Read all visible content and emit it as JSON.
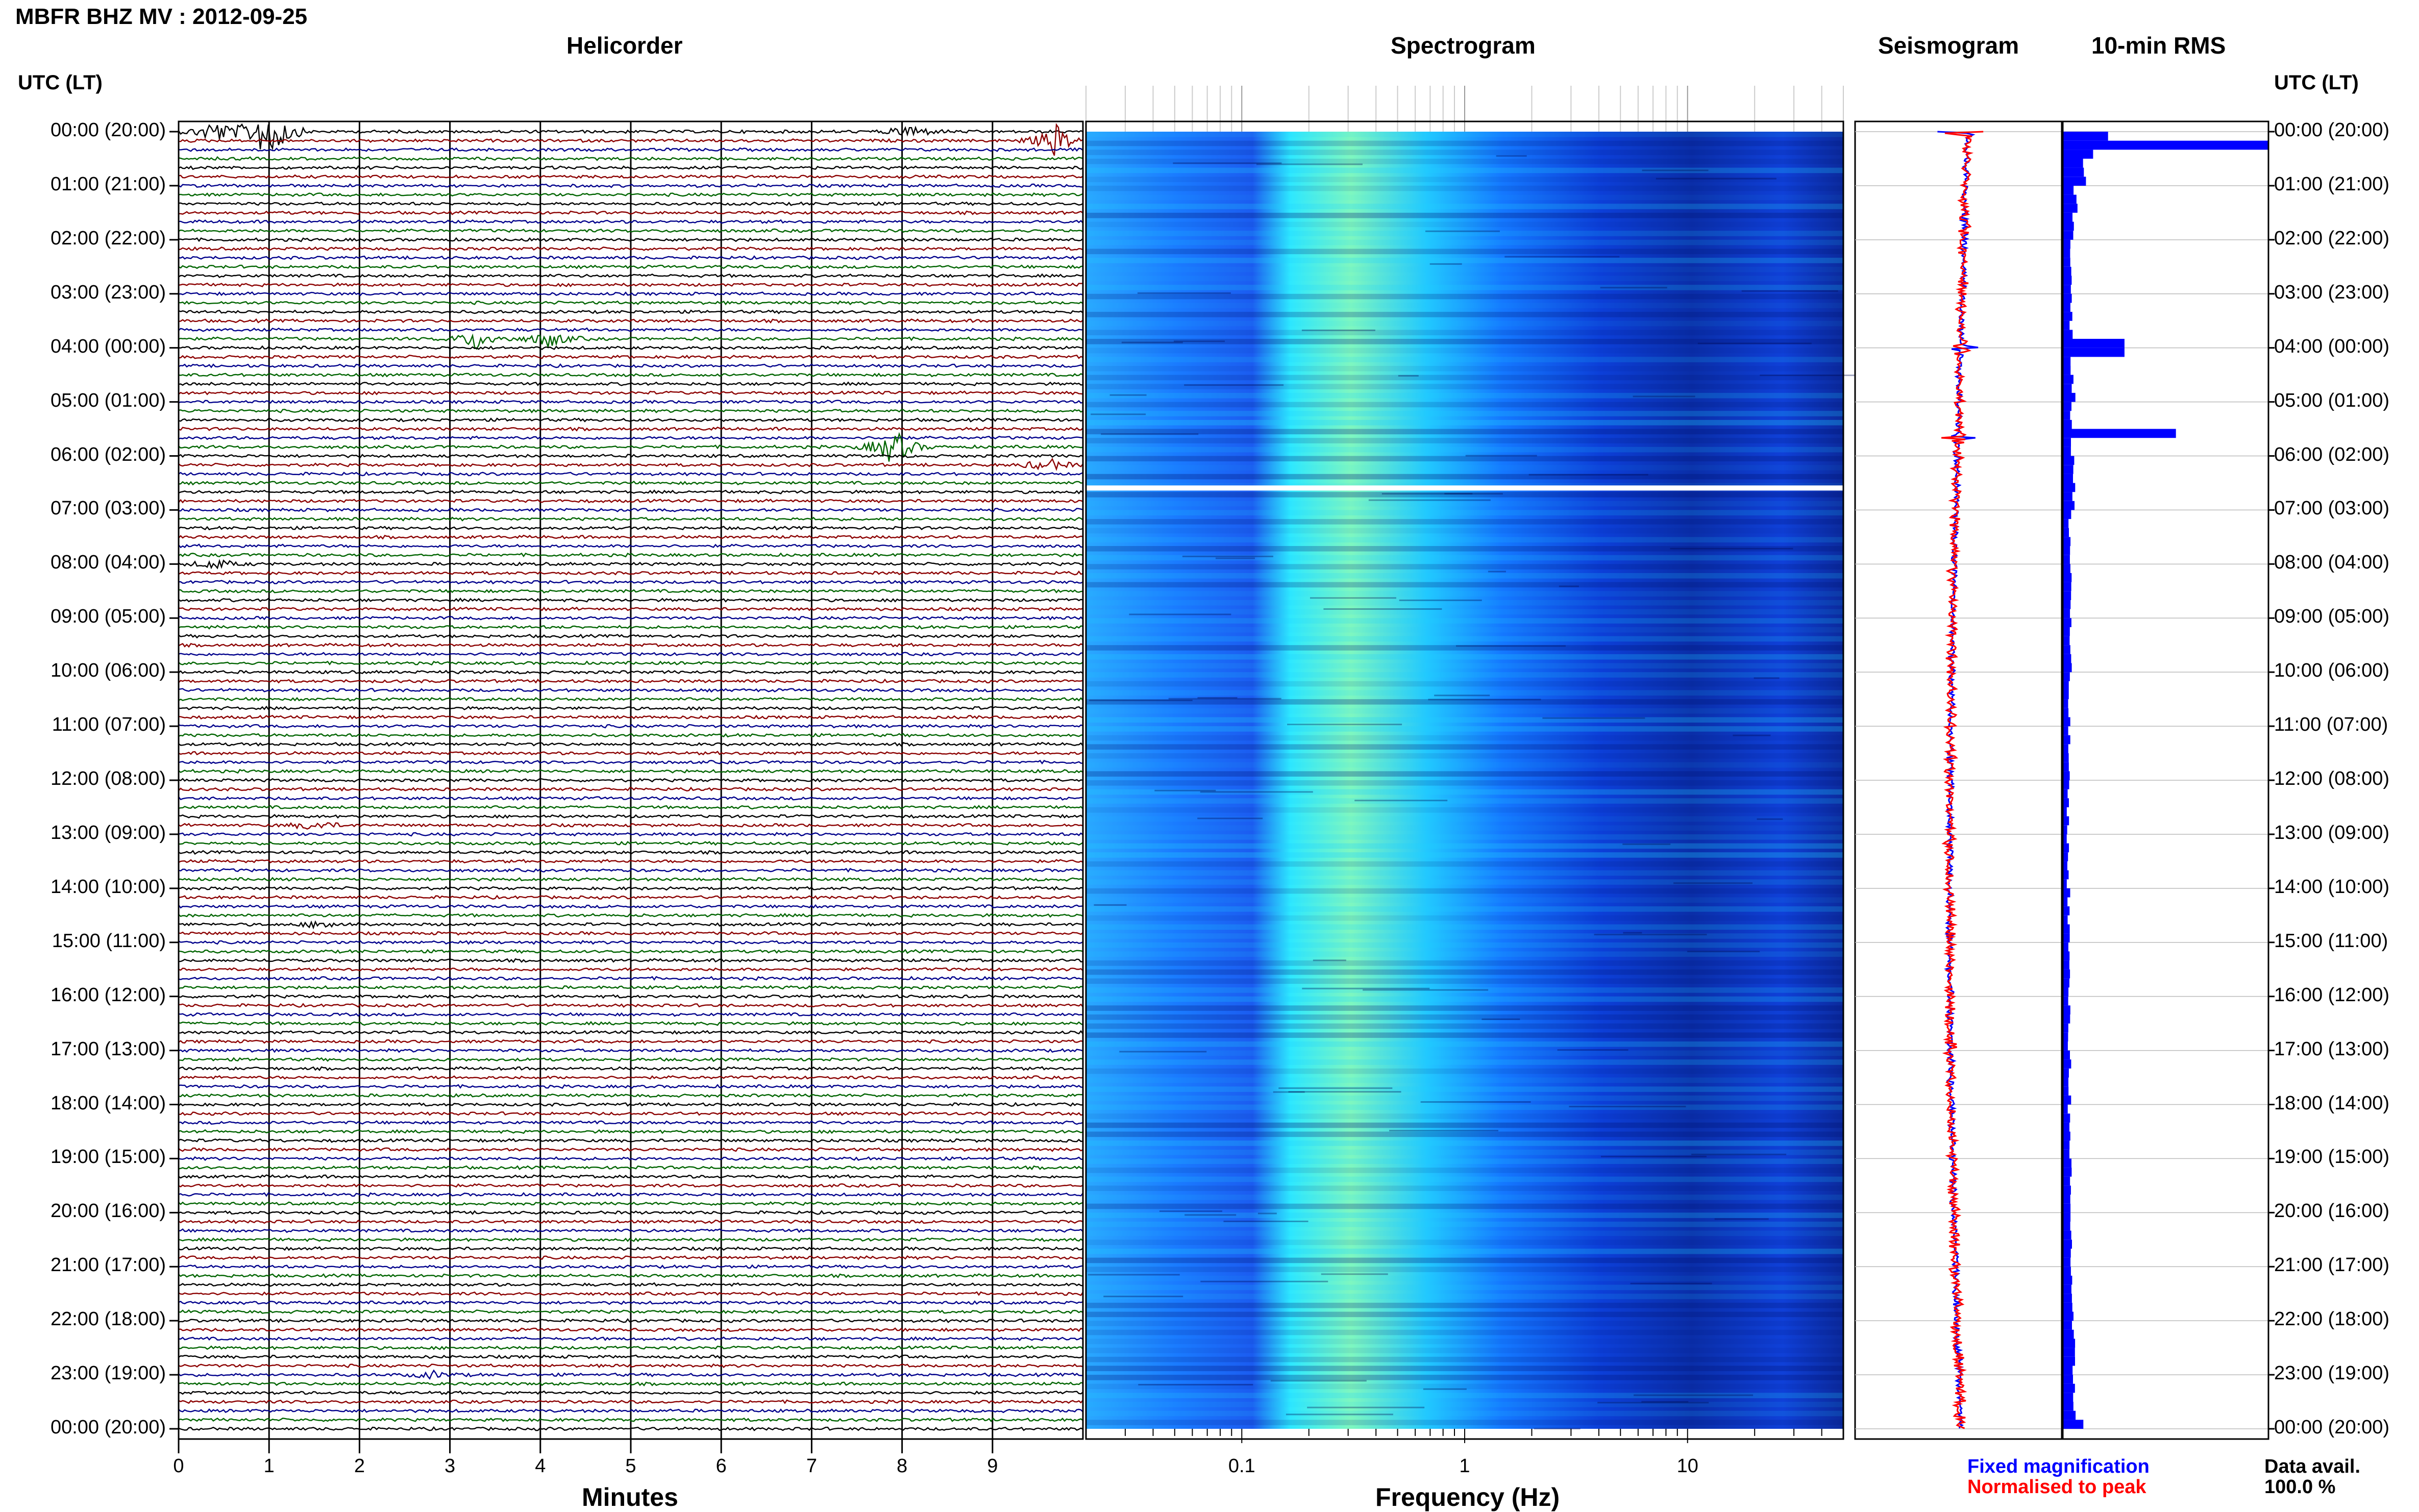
{
  "header": {
    "title": "MBFR BHZ MV : 2012-09-25",
    "panels": [
      "Helicorder",
      "Spectrogram",
      "Seismogram",
      "10-min RMS"
    ],
    "utc_lt_left": "UTC (LT)",
    "utc_lt_right": "UTC (LT)"
  },
  "footer": {
    "xlabel_helicorder": "Minutes",
    "xlabel_spectrogram": "Frequency (Hz)",
    "legend_fixed": "Fixed magnification",
    "legend_normalised": "Normalised to peak",
    "data_avail_label": "Data avail.",
    "data_avail_value": "100.0 %"
  },
  "colors": {
    "trace_cycle": [
      "#000000",
      "#8b0000",
      "#00008b",
      "#006400"
    ],
    "spectro_low": "#00108a",
    "spectro_high": "#40e8ff",
    "rms_bar": "#0000ff",
    "seismo_trace": "#ff0000",
    "legend_fixed": "#0000ff",
    "legend_normalised": "#ff0000",
    "gap_row": "#ffffff"
  },
  "chart_data": [
    {
      "type": "line",
      "panel": "Helicorder",
      "xlabel": "Minutes",
      "x_ticks": [
        "0",
        "1",
        "2",
        "3",
        "4",
        "5",
        "6",
        "7",
        "8",
        "9"
      ],
      "xlim": [
        0,
        10
      ],
      "rows_per_hour": 6,
      "hour_labels": [
        "00:00 (20:00)",
        "01:00 (21:00)",
        "02:00 (22:00)",
        "03:00 (23:00)",
        "04:00 (00:00)",
        "05:00 (01:00)",
        "06:00 (02:00)",
        "07:00 (03:00)",
        "08:00 (04:00)",
        "09:00 (05:00)",
        "10:00 (06:00)",
        "11:00 (07:00)",
        "12:00 (08:00)",
        "13:00 (09:00)",
        "14:00 (10:00)",
        "15:00 (11:00)",
        "16:00 (12:00)",
        "17:00 (13:00)",
        "18:00 (14:00)",
        "19:00 (15:00)",
        "20:00 (16:00)",
        "21:00 (17:00)",
        "22:00 (18:00)",
        "23:00 (19:00)",
        "00:00 (20:00)"
      ],
      "events": [
        {
          "row": 0,
          "minute": 1.0,
          "amplitude": 1.0
        },
        {
          "row": 0,
          "minute": 0.4,
          "amplitude": 0.35
        },
        {
          "row": 1,
          "minute": 9.7,
          "amplitude": 0.45
        },
        {
          "row": 0,
          "minute": 8.1,
          "amplitude": 0.2
        },
        {
          "row": 23,
          "minute": 3.3,
          "amplitude": 0.3
        },
        {
          "row": 23,
          "minute": 4.1,
          "amplitude": 0.25
        },
        {
          "row": 35,
          "minute": 7.9,
          "amplitude": 0.55
        },
        {
          "row": 37,
          "minute": 9.6,
          "amplitude": 0.2
        },
        {
          "row": 48,
          "minute": 0.4,
          "amplitude": 0.15
        },
        {
          "row": 77,
          "minute": 1.5,
          "amplitude": 0.15
        },
        {
          "row": 88,
          "minute": 1.6,
          "amplitude": 0.12
        },
        {
          "row": 138,
          "minute": 2.8,
          "amplitude": 0.1
        }
      ]
    },
    {
      "type": "heatmap",
      "panel": "Spectrogram",
      "xlabel": "Frequency (Hz)",
      "x_scale": "log",
      "x_ticks": [
        "0.1",
        "1",
        "10"
      ],
      "xlim": [
        0.02,
        50
      ],
      "data_gap_utc": "06:35"
    },
    {
      "type": "line",
      "panel": "Seismogram",
      "series": [
        {
          "name": "Fixed magnification"
        },
        {
          "name": "Normalised to peak"
        }
      ],
      "peak_times_utc": [
        "00:00",
        "04:00",
        "05:40"
      ]
    },
    {
      "type": "bar",
      "panel": "10-min RMS",
      "orientation": "horizontal",
      "hourly_rms": [
        0.12,
        0.06,
        0.045,
        0.04,
        0.05,
        0.045,
        0.05,
        0.035,
        0.04,
        0.035,
        0.03,
        0.03,
        0.025,
        0.025,
        0.03,
        0.03,
        0.03,
        0.035,
        0.03,
        0.035,
        0.04,
        0.045,
        0.05,
        0.06,
        0.06
      ],
      "peaks": [
        {
          "time_utc": "00:10",
          "value": 1.0
        },
        {
          "time_utc": "04:00",
          "value": 0.3
        },
        {
          "time_utc": "05:30",
          "value": 0.55
        },
        {
          "time_utc": "00:00",
          "value": 0.22
        }
      ]
    }
  ]
}
